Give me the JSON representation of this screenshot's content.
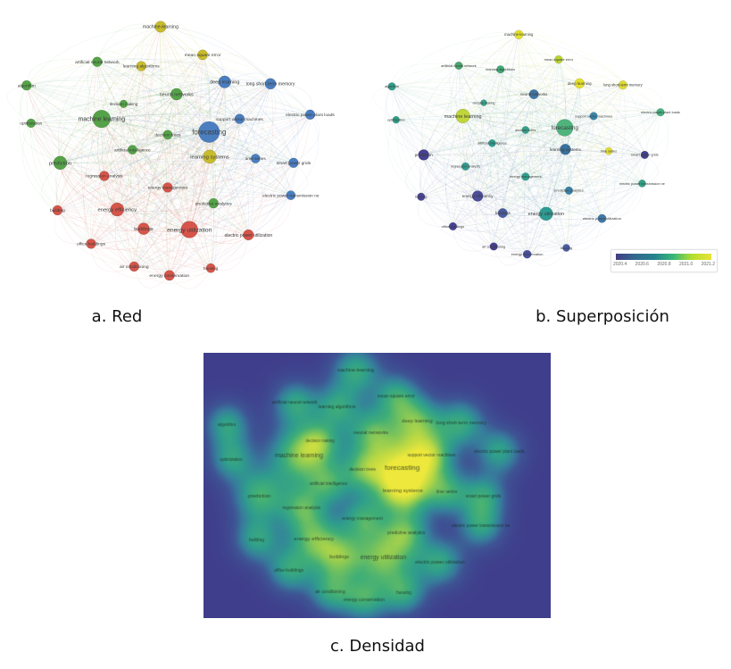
{
  "figure": {
    "captions": {
      "a": "a. Red",
      "b": "b. Superposición",
      "c": "c. Densidad"
    }
  },
  "cluster_colors": {
    "red": "#D6554A",
    "green": "#55A348",
    "blue": "#4A7EC0",
    "yellow": "#C9BC2C"
  },
  "overlay_legend": {
    "ticks": [
      "2020.4",
      "2020.6",
      "2020.8",
      "2021.0",
      "2021.2"
    ],
    "gradient": [
      "#433D84",
      "#31688E",
      "#26828E",
      "#35B779",
      "#B5DE2B",
      "#E8E337"
    ]
  },
  "density": {
    "background": "#3F3E8C",
    "colormap": [
      [
        0.0,
        "#3F3E8C"
      ],
      [
        0.18,
        "#3E5494"
      ],
      [
        0.32,
        "#377D9C"
      ],
      [
        0.46,
        "#2F9D8D"
      ],
      [
        0.6,
        "#41AF76"
      ],
      [
        0.72,
        "#7BC45B"
      ],
      [
        0.84,
        "#B8D845"
      ],
      [
        1.0,
        "#EDE83B"
      ]
    ]
  },
  "chart_data": [
    {
      "type": "network",
      "title": "a. Red",
      "note": "VOSviewer keyword co-occurrence network; node color = cluster",
      "nodes": [
        {
          "label": "machine-learning",
          "x": 0.434,
          "y": 0.033,
          "w": 0.42,
          "cluster": "yellow",
          "oc": "#E2DE30"
        },
        {
          "label": "mean square error",
          "x": 0.558,
          "y": 0.138,
          "w": 0.35,
          "cluster": "yellow",
          "oc": "#BBD333"
        },
        {
          "label": "artificial neural network",
          "x": 0.247,
          "y": 0.164,
          "w": 0.33,
          "cluster": "green",
          "oc": "#49A56B"
        },
        {
          "label": "learning algorithms",
          "x": 0.377,
          "y": 0.18,
          "w": 0.33,
          "cluster": "yellow",
          "oc": "#3FA878"
        },
        {
          "label": "algorithm",
          "x": 0.039,
          "y": 0.252,
          "w": 0.33,
          "cluster": "green",
          "oc": "#349B8A"
        },
        {
          "label": "deep learning",
          "x": 0.623,
          "y": 0.239,
          "w": 0.48,
          "cluster": "blue",
          "oc": "#E5DF2E"
        },
        {
          "label": "long short-term memory",
          "x": 0.758,
          "y": 0.246,
          "w": 0.4,
          "cluster": "blue",
          "oc": "#E0DB36"
        },
        {
          "label": "neural networks",
          "x": 0.481,
          "y": 0.285,
          "w": 0.45,
          "cluster": "green",
          "oc": "#3E74A5"
        },
        {
          "label": "decision making",
          "x": 0.325,
          "y": 0.321,
          "w": 0.22,
          "cluster": "green",
          "oc": "#36A28C"
        },
        {
          "label": "machine learning",
          "x": 0.26,
          "y": 0.377,
          "w": 0.8,
          "cluster": "green",
          "oc": "#BFD53A"
        },
        {
          "label": "optimization",
          "x": 0.052,
          "y": 0.393,
          "w": 0.28,
          "cluster": "green",
          "oc": "#2FA089"
        },
        {
          "label": "support vector machines",
          "x": 0.667,
          "y": 0.377,
          "w": 0.33,
          "cluster": "blue",
          "oc": "#3C87A9"
        },
        {
          "label": "electric power plant loads",
          "x": 0.875,
          "y": 0.361,
          "w": 0.33,
          "cluster": "blue",
          "oc": "#44AF7D"
        },
        {
          "label": "forecasting",
          "x": 0.577,
          "y": 0.426,
          "w": 1.0,
          "cluster": "blue",
          "oc": "#4FB47C"
        },
        {
          "label": "decision trees",
          "x": 0.455,
          "y": 0.436,
          "w": 0.3,
          "cluster": "green",
          "oc": "#35A18A"
        },
        {
          "label": "artificial intelligence",
          "x": 0.351,
          "y": 0.492,
          "w": 0.3,
          "cluster": "green",
          "oc": "#2F9E91"
        },
        {
          "label": "prediction",
          "x": 0.138,
          "y": 0.541,
          "w": 0.55,
          "cluster": "green",
          "oc": "#474290"
        },
        {
          "label": "learning systems",
          "x": 0.579,
          "y": 0.518,
          "w": 0.55,
          "cluster": "yellow",
          "oc": "#38719F"
        },
        {
          "label": "time series",
          "x": 0.714,
          "y": 0.525,
          "w": 0.3,
          "cluster": "blue",
          "oc": "#E3DC33"
        },
        {
          "label": "smart power grids",
          "x": 0.826,
          "y": 0.541,
          "w": 0.33,
          "cluster": "blue",
          "oc": "#414089"
        },
        {
          "label": "regression analysis",
          "x": 0.268,
          "y": 0.59,
          "w": 0.33,
          "cluster": "red",
          "oc": "#339C90"
        },
        {
          "label": "energy management",
          "x": 0.455,
          "y": 0.633,
          "w": 0.33,
          "cluster": "red",
          "oc": "#2F9F8D"
        },
        {
          "label": "electric power transmission ne",
          "x": 0.818,
          "y": 0.662,
          "w": 0.3,
          "cluster": "blue",
          "oc": "#35A087"
        },
        {
          "label": "predictive analytics",
          "x": 0.59,
          "y": 0.692,
          "w": 0.33,
          "cluster": "green",
          "oc": "#3683A5"
        },
        {
          "label": "energy efficiency",
          "x": 0.306,
          "y": 0.715,
          "w": 0.55,
          "cluster": "red",
          "oc": "#4D4D9C"
        },
        {
          "label": "building",
          "x": 0.13,
          "y": 0.718,
          "w": 0.33,
          "cluster": "red",
          "oc": "#4A4694"
        },
        {
          "label": "buildings",
          "x": 0.384,
          "y": 0.787,
          "w": 0.45,
          "cluster": "red",
          "oc": "#4A5BA0"
        },
        {
          "label": "energy utilization",
          "x": 0.519,
          "y": 0.79,
          "w": 0.75,
          "cluster": "red",
          "oc": "#2E9B93"
        },
        {
          "label": "electric power utilization",
          "x": 0.693,
          "y": 0.81,
          "w": 0.38,
          "cluster": "red",
          "oc": "#3E78A8"
        },
        {
          "label": "office buildings",
          "x": 0.229,
          "y": 0.843,
          "w": 0.33,
          "cluster": "red",
          "oc": "#474290"
        },
        {
          "label": "air conditioning",
          "x": 0.356,
          "y": 0.928,
          "w": 0.33,
          "cluster": "red",
          "oc": "#443F8D"
        },
        {
          "label": "energy conservation",
          "x": 0.46,
          "y": 0.961,
          "w": 0.36,
          "cluster": "red",
          "oc": "#4A5199"
        },
        {
          "label": "housing",
          "x": 0.582,
          "y": 0.934,
          "w": 0.3,
          "cluster": "red",
          "oc": "#4A5BA3"
        }
      ]
    },
    {
      "type": "network",
      "title": "b. Superposición",
      "note": "same network, overlay coloring by average publication year",
      "legend_ticks": [
        "2020.4",
        "2020.6",
        "2020.8",
        "2021.0",
        "2021.2"
      ]
    },
    {
      "type": "heatmap",
      "title": "c. Densidad",
      "note": "item density view of the same keyword network"
    }
  ]
}
